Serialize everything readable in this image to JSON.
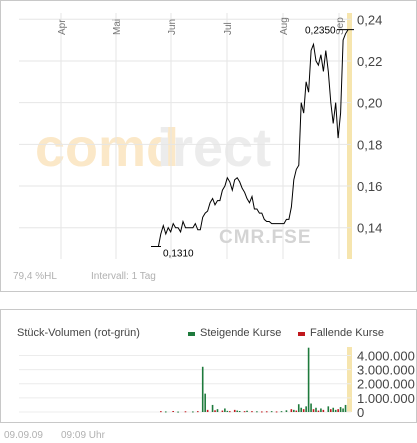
{
  "chart_data": [
    {
      "type": "line",
      "x_ticks": [
        "Apr",
        "Mai",
        "Jun",
        "Jul",
        "Aug",
        "Sep"
      ],
      "y_ticks": [
        "0,14",
        "0,16",
        "0,18",
        "0,20",
        "0,22",
        "0,24"
      ],
      "ylim": [
        0.125,
        0.243
      ],
      "grid": true,
      "series": [
        {
          "values": [
            0.131,
            0.131,
            0.131,
            0.131,
            0.137,
            0.141,
            0.137,
            0.14,
            0.138,
            0.142,
            0.14,
            0.14,
            0.138,
            0.143,
            0.14,
            0.14,
            0.14,
            0.14,
            0.142,
            0.139,
            0.139,
            0.145,
            0.147,
            0.148,
            0.152,
            0.154,
            0.151,
            0.153,
            0.153,
            0.158,
            0.16,
            0.164,
            0.162,
            0.158,
            0.163,
            0.164,
            0.162,
            0.159,
            0.157,
            0.154,
            0.152,
            0.155,
            0.149,
            0.149,
            0.147,
            0.147,
            0.144,
            0.143,
            0.143,
            0.142,
            0.142,
            0.142,
            0.142,
            0.142,
            0.142,
            0.144,
            0.144,
            0.15,
            0.163,
            0.168,
            0.17,
            0.2,
            0.195,
            0.21,
            0.205,
            0.225,
            0.228,
            0.22,
            0.218,
            0.223,
            0.215,
            0.225,
            0.215,
            0.2,
            0.19,
            0.2,
            0.183,
            0.195,
            0.23,
            0.233,
            0.235
          ]
        }
      ],
      "annotations": {
        "min_label": "0,1310",
        "max_label": "0,2350"
      },
      "highlight_color": "#f5e1a0"
    },
    {
      "type": "bar",
      "title": "Stück-Volumen (rot-grün)",
      "y_ticks": [
        "0",
        "1.000.000",
        "2.000.000",
        "3.000.000",
        "4.000.000"
      ],
      "ylim": [
        0,
        4600000
      ],
      "series": [
        {
          "name": "Steigende Kurse",
          "color": "#1e7a3c"
        },
        {
          "name": "Fallende Kurse",
          "color": "#c0181d"
        }
      ],
      "bars": [
        {
          "i": 4,
          "v": 60000,
          "s": "down"
        },
        {
          "i": 6,
          "v": 40000,
          "s": "up"
        },
        {
          "i": 9,
          "v": 70000,
          "s": "down"
        },
        {
          "i": 11,
          "v": 30000,
          "s": "up"
        },
        {
          "i": 14,
          "v": 50000,
          "s": "down"
        },
        {
          "i": 17,
          "v": 40000,
          "s": "up"
        },
        {
          "i": 19,
          "v": 60000,
          "s": "down"
        },
        {
          "i": 21,
          "v": 3200000,
          "s": "up"
        },
        {
          "i": 22,
          "v": 1300000,
          "s": "up"
        },
        {
          "i": 23,
          "v": 150000,
          "s": "down"
        },
        {
          "i": 25,
          "v": 500000,
          "s": "up"
        },
        {
          "i": 26,
          "v": 120000,
          "s": "down"
        },
        {
          "i": 27,
          "v": 200000,
          "s": "up"
        },
        {
          "i": 29,
          "v": 100000,
          "s": "down"
        },
        {
          "i": 30,
          "v": 250000,
          "s": "up"
        },
        {
          "i": 31,
          "v": 80000,
          "s": "up"
        },
        {
          "i": 32,
          "v": 60000,
          "s": "down"
        },
        {
          "i": 34,
          "v": 150000,
          "s": "down"
        },
        {
          "i": 35,
          "v": 100000,
          "s": "up"
        },
        {
          "i": 36,
          "v": 70000,
          "s": "up"
        },
        {
          "i": 38,
          "v": 60000,
          "s": "down"
        },
        {
          "i": 39,
          "v": 90000,
          "s": "up"
        },
        {
          "i": 41,
          "v": 60000,
          "s": "down"
        },
        {
          "i": 43,
          "v": 50000,
          "s": "up"
        },
        {
          "i": 45,
          "v": 40000,
          "s": "down"
        },
        {
          "i": 47,
          "v": 50000,
          "s": "down"
        },
        {
          "i": 49,
          "v": 60000,
          "s": "up"
        },
        {
          "i": 51,
          "v": 40000,
          "s": "down"
        },
        {
          "i": 53,
          "v": 60000,
          "s": "up"
        },
        {
          "i": 55,
          "v": 120000,
          "s": "up"
        },
        {
          "i": 57,
          "v": 200000,
          "s": "down"
        },
        {
          "i": 58,
          "v": 150000,
          "s": "up"
        },
        {
          "i": 59,
          "v": 100000,
          "s": "down"
        },
        {
          "i": 60,
          "v": 550000,
          "s": "up"
        },
        {
          "i": 61,
          "v": 300000,
          "s": "up"
        },
        {
          "i": 62,
          "v": 200000,
          "s": "down"
        },
        {
          "i": 63,
          "v": 400000,
          "s": "up"
        },
        {
          "i": 64,
          "v": 4550000,
          "s": "up"
        },
        {
          "i": 65,
          "v": 600000,
          "s": "up"
        },
        {
          "i": 66,
          "v": 200000,
          "s": "down"
        },
        {
          "i": 67,
          "v": 300000,
          "s": "up"
        },
        {
          "i": 68,
          "v": 100000,
          "s": "down"
        },
        {
          "i": 69,
          "v": 250000,
          "s": "up"
        },
        {
          "i": 70,
          "v": 150000,
          "s": "down"
        },
        {
          "i": 72,
          "v": 400000,
          "s": "up"
        },
        {
          "i": 73,
          "v": 200000,
          "s": "down"
        },
        {
          "i": 74,
          "v": 300000,
          "s": "up"
        },
        {
          "i": 75,
          "v": 150000,
          "s": "up"
        },
        {
          "i": 76,
          "v": 200000,
          "s": "down"
        },
        {
          "i": 77,
          "v": 350000,
          "s": "up"
        },
        {
          "i": 78,
          "v": 250000,
          "s": "up"
        },
        {
          "i": 79,
          "v": 500000,
          "s": "up"
        }
      ]
    }
  ],
  "info": {
    "hl": "79,4 %HL",
    "interval": "Intervall: 1 Tag"
  },
  "watermark": {
    "logo": "comdirect",
    "symbol": "CMR.FSE"
  },
  "footer": {
    "date": "09.09.09",
    "time": "09:09 Uhr"
  }
}
